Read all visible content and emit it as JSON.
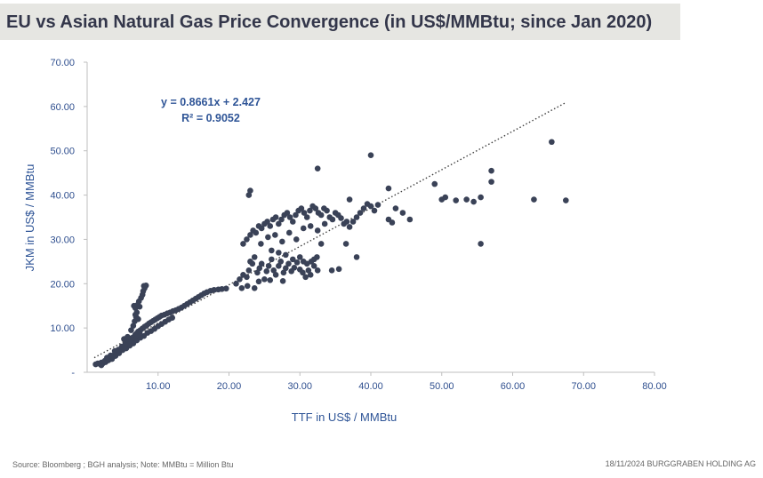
{
  "title": "EU vs Asian Natural Gas Price Convergence (in US$/MMBtu; since Jan 2020)",
  "footer": {
    "source": "Source: Bloomberg ; BGH analysis; Note: MMBtu = Million Btu",
    "date": "18/11/2024",
    "company": "BURGGRABEN HOLDING AG"
  },
  "chart_data": {
    "type": "scatter",
    "title": "EU vs Asian Natural Gas Price Convergence (in US$/MMBtu; since Jan 2020)",
    "xlabel": "TTF in US$ / MMBtu",
    "ylabel": "JKM in US$ / MMBtu",
    "xlim": [
      0,
      80
    ],
    "ylim": [
      0,
      70
    ],
    "x_ticks": [
      "10.00",
      "20.00",
      "30.00",
      "40.00",
      "50.00",
      "60.00",
      "70.00",
      "80.00"
    ],
    "y_ticks": [
      "-",
      "10.00",
      "20.00",
      "30.00",
      "40.00",
      "50.00",
      "60.00",
      "70.00"
    ],
    "trendline": {
      "slope": 0.8661,
      "intercept": 2.427,
      "r2": 0.9052,
      "x_range": [
        1,
        67.5
      ],
      "equation_label": "y = 0.8661x + 2.427",
      "r2_label": "R² = 0.9052",
      "style": "dotted"
    },
    "point_color": "#3a4257",
    "series": [
      {
        "points": [
          [
            1.2,
            1.8
          ],
          [
            1.5,
            2.0
          ],
          [
            1.8,
            1.9
          ],
          [
            2.0,
            2.2
          ],
          [
            2.2,
            2.0
          ],
          [
            2.4,
            2.4
          ],
          [
            2.6,
            2.3
          ],
          [
            2.8,
            2.8
          ],
          [
            3.0,
            3.0
          ],
          [
            3.2,
            3.2
          ],
          [
            3.4,
            3.5
          ],
          [
            3.6,
            3.4
          ],
          [
            3.8,
            3.9
          ],
          [
            4.0,
            4.2
          ],
          [
            4.3,
            4.5
          ],
          [
            4.6,
            4.8
          ],
          [
            4.9,
            5.2
          ],
          [
            5.2,
            5.6
          ],
          [
            5.5,
            6.0
          ],
          [
            5.8,
            6.3
          ],
          [
            6.0,
            6.8
          ],
          [
            6.2,
            7.2
          ],
          [
            6.4,
            7.6
          ],
          [
            6.6,
            8.0
          ],
          [
            6.8,
            8.5
          ],
          [
            7.0,
            8.8
          ],
          [
            7.2,
            9.2
          ],
          [
            7.5,
            9.5
          ],
          [
            7.8,
            9.9
          ],
          [
            8.1,
            10.3
          ],
          [
            8.4,
            10.6
          ],
          [
            8.7,
            11.0
          ],
          [
            9.0,
            11.3
          ],
          [
            9.3,
            11.6
          ],
          [
            9.6,
            11.9
          ],
          [
            9.9,
            12.2
          ],
          [
            10.2,
            12.5
          ],
          [
            10.5,
            12.8
          ],
          [
            10.9,
            13.0
          ],
          [
            11.3,
            13.3
          ],
          [
            11.7,
            13.5
          ],
          [
            12.1,
            13.8
          ],
          [
            12.5,
            14.0
          ],
          [
            12.9,
            14.3
          ],
          [
            13.3,
            14.6
          ],
          [
            13.7,
            15.0
          ],
          [
            14.1,
            15.4
          ],
          [
            14.5,
            15.8
          ],
          [
            14.9,
            16.2
          ],
          [
            15.3,
            16.6
          ],
          [
            15.7,
            17.0
          ],
          [
            16.1,
            17.4
          ],
          [
            16.5,
            17.8
          ],
          [
            16.9,
            18.1
          ],
          [
            17.4,
            18.4
          ],
          [
            17.9,
            18.6
          ],
          [
            18.5,
            18.7
          ],
          [
            19.0,
            18.8
          ],
          [
            19.6,
            18.9
          ],
          [
            2.0,
            1.6
          ],
          [
            2.5,
            2.6
          ],
          [
            3.0,
            2.7
          ],
          [
            3.5,
            3.0
          ],
          [
            4.0,
            3.7
          ],
          [
            4.5,
            4.3
          ],
          [
            5.0,
            5.0
          ],
          [
            5.5,
            5.4
          ],
          [
            6.0,
            6.0
          ],
          [
            6.5,
            6.5
          ],
          [
            7.0,
            7.2
          ],
          [
            7.5,
            7.8
          ],
          [
            8.0,
            8.2
          ],
          [
            8.5,
            8.9
          ],
          [
            9.0,
            9.3
          ],
          [
            9.5,
            9.8
          ],
          [
            10.0,
            10.4
          ],
          [
            10.5,
            10.9
          ],
          [
            11.0,
            11.4
          ],
          [
            11.5,
            11.9
          ],
          [
            12.0,
            12.3
          ],
          [
            2.8,
            3.3
          ],
          [
            3.3,
            3.8
          ],
          [
            3.9,
            4.8
          ],
          [
            4.4,
            5.1
          ],
          [
            4.9,
            5.8
          ],
          [
            5.4,
            6.4
          ],
          [
            5.9,
            7.1
          ],
          [
            6.4,
            7.8
          ],
          [
            6.9,
            8.4
          ],
          [
            7.4,
            9.0
          ],
          [
            5.2,
            7.5
          ],
          [
            5.7,
            8.0
          ],
          [
            6.2,
            9.5
          ],
          [
            6.5,
            10.5
          ],
          [
            6.7,
            11.5
          ],
          [
            6.9,
            12.5
          ],
          [
            7.0,
            13.5
          ],
          [
            6.8,
            14.5
          ],
          [
            7.1,
            15.2
          ],
          [
            7.3,
            16.0
          ],
          [
            7.6,
            16.8
          ],
          [
            7.8,
            17.5
          ],
          [
            7.9,
            18.3
          ],
          [
            8.1,
            19.0
          ],
          [
            8.3,
            19.6
          ],
          [
            8.0,
            19.5
          ],
          [
            7.4,
            14.8
          ],
          [
            6.6,
            15.0
          ],
          [
            6.8,
            13.0
          ],
          [
            7.2,
            12.0
          ],
          [
            21.0,
            20.0
          ],
          [
            21.5,
            21.0
          ],
          [
            22.0,
            22.0
          ],
          [
            22.5,
            21.5
          ],
          [
            22.8,
            23.0
          ],
          [
            23.0,
            25.0
          ],
          [
            23.3,
            24.5
          ],
          [
            23.6,
            26.0
          ],
          [
            24.0,
            22.5
          ],
          [
            24.3,
            23.5
          ],
          [
            24.6,
            24.5
          ],
          [
            25.0,
            21.0
          ],
          [
            25.3,
            22.8
          ],
          [
            25.6,
            24.0
          ],
          [
            26.0,
            25.5
          ],
          [
            26.3,
            23.0
          ],
          [
            26.6,
            22.0
          ],
          [
            27.0,
            24.0
          ],
          [
            27.3,
            25.0
          ],
          [
            27.7,
            22.5
          ],
          [
            28.0,
            23.5
          ],
          [
            28.4,
            24.5
          ],
          [
            28.8,
            22.8
          ],
          [
            29.2,
            23.6
          ],
          [
            29.6,
            24.8
          ],
          [
            30.0,
            23.2
          ],
          [
            30.4,
            22.5
          ],
          [
            30.8,
            21.5
          ],
          [
            31.2,
            23.0
          ],
          [
            31.6,
            25.0
          ],
          [
            32.0,
            25.5
          ],
          [
            32.4,
            26.0
          ],
          [
            22.6,
            19.5
          ],
          [
            23.6,
            19.0
          ],
          [
            24.2,
            20.5
          ],
          [
            25.8,
            20.8
          ],
          [
            27.6,
            20.6
          ],
          [
            21.8,
            19.0
          ],
          [
            22.0,
            29.0
          ],
          [
            22.5,
            30.0
          ],
          [
            23.0,
            31.0
          ],
          [
            23.4,
            32.0
          ],
          [
            23.8,
            31.5
          ],
          [
            24.2,
            33.0
          ],
          [
            24.6,
            32.5
          ],
          [
            25.0,
            33.5
          ],
          [
            25.4,
            34.0
          ],
          [
            25.8,
            33.0
          ],
          [
            26.2,
            34.5
          ],
          [
            26.6,
            35.0
          ],
          [
            27.0,
            33.5
          ],
          [
            27.4,
            34.5
          ],
          [
            27.8,
            35.5
          ],
          [
            28.2,
            36.0
          ],
          [
            28.6,
            35.0
          ],
          [
            29.0,
            34.0
          ],
          [
            29.4,
            35.5
          ],
          [
            29.8,
            36.5
          ],
          [
            30.2,
            37.0
          ],
          [
            30.6,
            36.0
          ],
          [
            31.0,
            35.0
          ],
          [
            31.4,
            36.5
          ],
          [
            31.8,
            37.5
          ],
          [
            32.2,
            37.0
          ],
          [
            32.6,
            36.0
          ],
          [
            33.0,
            35.5
          ],
          [
            33.4,
            37.0
          ],
          [
            33.8,
            36.5
          ],
          [
            34.2,
            35.0
          ],
          [
            34.6,
            34.5
          ],
          [
            35.0,
            36.0
          ],
          [
            35.4,
            35.5
          ],
          [
            35.8,
            34.8
          ],
          [
            36.2,
            33.5
          ],
          [
            36.6,
            34.0
          ],
          [
            37.0,
            32.8
          ],
          [
            24.5,
            29.0
          ],
          [
            25.5,
            30.5
          ],
          [
            26.5,
            31.0
          ],
          [
            27.5,
            29.5
          ],
          [
            28.5,
            31.5
          ],
          [
            29.5,
            30.0
          ],
          [
            30.5,
            32.5
          ],
          [
            31.5,
            33.0
          ],
          [
            32.5,
            32.0
          ],
          [
            33.5,
            33.5
          ],
          [
            37.5,
            34.0
          ],
          [
            38.0,
            35.0
          ],
          [
            38.5,
            36.0
          ],
          [
            39.0,
            37.0
          ],
          [
            39.5,
            38.0
          ],
          [
            40.0,
            37.5
          ],
          [
            40.5,
            36.5
          ],
          [
            41.0,
            37.8
          ],
          [
            42.5,
            34.5
          ],
          [
            43.0,
            33.8
          ],
          [
            43.5,
            37.0
          ],
          [
            44.5,
            36.0
          ],
          [
            45.5,
            34.5
          ],
          [
            33.0,
            29.0
          ],
          [
            34.5,
            23.0
          ],
          [
            35.5,
            23.3
          ],
          [
            36.5,
            29.0
          ],
          [
            38.0,
            26.0
          ],
          [
            37.0,
            39.0
          ],
          [
            22.8,
            40.0
          ],
          [
            23.0,
            41.0
          ],
          [
            32.5,
            46.0
          ],
          [
            40.0,
            49.0
          ],
          [
            42.5,
            41.5
          ],
          [
            49.0,
            42.5
          ],
          [
            50.0,
            39.0
          ],
          [
            50.5,
            39.5
          ],
          [
            52.0,
            38.8
          ],
          [
            53.5,
            39.0
          ],
          [
            54.5,
            38.5
          ],
          [
            55.5,
            39.5
          ],
          [
            55.5,
            29.0
          ],
          [
            57.0,
            45.5
          ],
          [
            57.0,
            43.0
          ],
          [
            63.0,
            39.0
          ],
          [
            65.5,
            52.0
          ],
          [
            67.5,
            38.8
          ],
          [
            30.0,
            26.0
          ],
          [
            30.5,
            25.0
          ],
          [
            31.0,
            24.5
          ],
          [
            32.0,
            24.0
          ],
          [
            32.5,
            23.0
          ],
          [
            31.5,
            22.0
          ],
          [
            29.0,
            25.5
          ],
          [
            28.0,
            26.5
          ],
          [
            27.0,
            27.0
          ],
          [
            26.0,
            27.5
          ]
        ]
      }
    ]
  }
}
